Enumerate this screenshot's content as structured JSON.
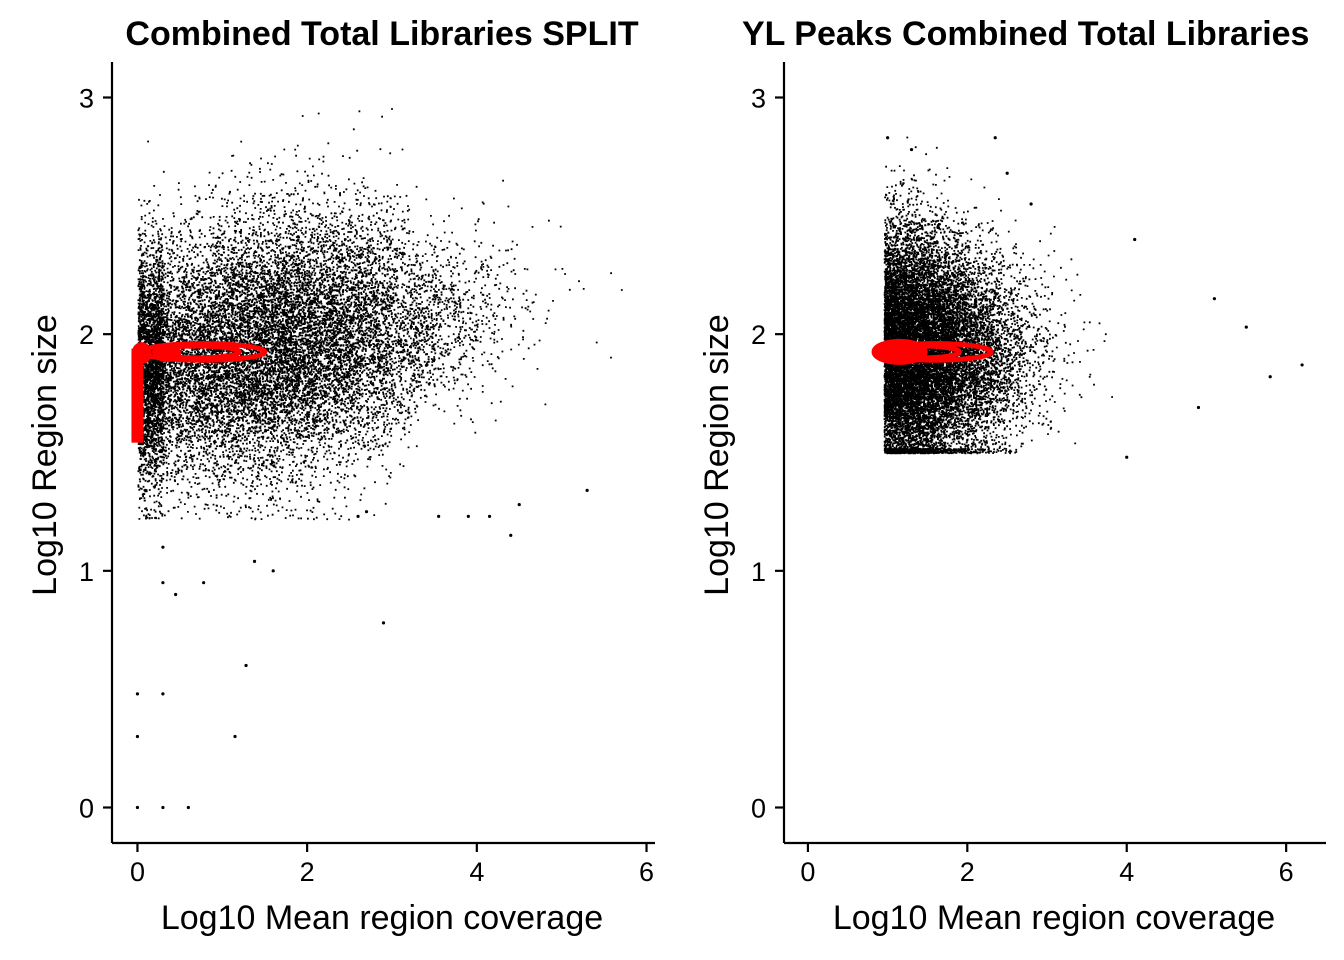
{
  "chart_data": [
    {
      "type": "scatter",
      "title": "Combined Total Libraries SPLIT",
      "xlabel": "Log10 Mean region coverage",
      "ylabel": "Log10 Region size",
      "xlim": [
        -0.3,
        6.1
      ],
      "ylim": [
        -0.15,
        3.15
      ],
      "xticks": [
        "0",
        "2",
        "4",
        "6"
      ],
      "yticks": [
        "0",
        "1",
        "2",
        "3"
      ],
      "grid": false,
      "point_color": "#000000",
      "density_contour_color": "#ff0000",
      "cloud": {
        "x_range": [
          0,
          5.8
        ],
        "y_range": [
          1.2,
          3.0
        ],
        "center": [
          1.8,
          2.05
        ]
      },
      "contours": [
        {
          "x": [
            0.05,
            1.5
          ],
          "y": [
            1.89,
            1.96
          ]
        },
        {
          "x": [
            0.2,
            1.2
          ],
          "y": [
            1.9,
            1.95
          ]
        }
      ],
      "outliers": [
        {
          "x": 0.0,
          "y": 0.0
        },
        {
          "x": 0.3,
          "y": 0.0
        },
        {
          "x": 0.6,
          "y": 0.0
        },
        {
          "x": 0.0,
          "y": 0.3
        },
        {
          "x": 1.15,
          "y": 0.3
        },
        {
          "x": 0.0,
          "y": 0.48
        },
        {
          "x": 0.3,
          "y": 0.48
        },
        {
          "x": 1.28,
          "y": 0.6
        },
        {
          "x": 2.9,
          "y": 0.78
        },
        {
          "x": 0.3,
          "y": 0.95
        },
        {
          "x": 0.45,
          "y": 0.9
        },
        {
          "x": 0.78,
          "y": 0.95
        },
        {
          "x": 1.38,
          "y": 1.04
        },
        {
          "x": 1.6,
          "y": 1.0
        },
        {
          "x": 0.3,
          "y": 1.1
        },
        {
          "x": 5.3,
          "y": 1.34
        },
        {
          "x": 4.4,
          "y": 1.15
        },
        {
          "x": 4.5,
          "y": 1.28
        },
        {
          "x": 3.55,
          "y": 1.23
        },
        {
          "x": 3.9,
          "y": 1.23
        },
        {
          "x": 4.15,
          "y": 1.23
        },
        {
          "x": 2.6,
          "y": 1.23
        },
        {
          "x": 2.7,
          "y": 1.25
        }
      ]
    },
    {
      "type": "scatter",
      "title": "YL Peaks Combined Total Libraries",
      "xlabel": "Log10 Mean region coverage",
      "ylabel": "Log10 Region size",
      "xlim": [
        -0.3,
        6.5
      ],
      "ylim": [
        -0.15,
        3.15
      ],
      "xticks": [
        "0",
        "2",
        "4",
        "6"
      ],
      "yticks": [
        "0",
        "1",
        "2",
        "3"
      ],
      "grid": false,
      "point_color": "#000000",
      "density_contour_color": "#ff0000",
      "cloud": {
        "x_range": [
          0.9,
          6.2
        ],
        "y_range": [
          1.5,
          2.85
        ],
        "center": [
          1.3,
          1.93
        ]
      },
      "contours": [
        {
          "x": [
            0.9,
            2.3
          ],
          "y": [
            1.89,
            1.96
          ]
        },
        {
          "x": [
            1.0,
            1.9
          ],
          "y": [
            1.9,
            1.95
          ]
        }
      ],
      "outliers": [
        {
          "x": 1.0,
          "y": 2.83
        },
        {
          "x": 2.35,
          "y": 2.83
        },
        {
          "x": 1.3,
          "y": 2.78
        },
        {
          "x": 2.8,
          "y": 2.55
        },
        {
          "x": 2.5,
          "y": 2.68
        },
        {
          "x": 4.1,
          "y": 2.4
        },
        {
          "x": 5.1,
          "y": 2.15
        },
        {
          "x": 5.5,
          "y": 2.03
        },
        {
          "x": 6.2,
          "y": 1.87
        },
        {
          "x": 5.8,
          "y": 1.82
        },
        {
          "x": 4.9,
          "y": 1.69
        },
        {
          "x": 4.0,
          "y": 1.48
        }
      ]
    }
  ]
}
